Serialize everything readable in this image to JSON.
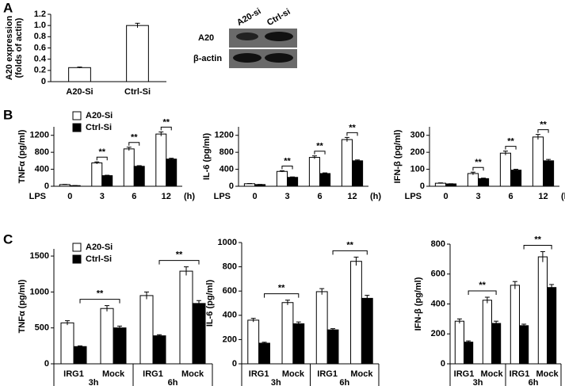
{
  "panel_labels": [
    "A",
    "B",
    "C"
  ],
  "blot": {
    "lanes": [
      "A20-si",
      "Ctrl-si"
    ],
    "rows": [
      "A20",
      "β-actin"
    ]
  },
  "chart_data": [
    {
      "type": "bar",
      "y_label": [
        "A20 expression",
        "(folds of actin)"
      ],
      "categories": [
        "A20-Si",
        "Ctrl-Si"
      ],
      "values": [
        0.25,
        1.0
      ],
      "errors": [
        0.01,
        0.04
      ],
      "color": "#ffffff",
      "ylim": [
        0,
        1.2
      ],
      "yticks": [
        0,
        0.2,
        0.4,
        0.6,
        0.8,
        {
          "value": 1,
          "label": "1.0"
        },
        1.2
      ]
    },
    {
      "type": "bar",
      "y_label": [
        "TNFα (pg/ml)"
      ],
      "x_label_left": "LPS",
      "x_label_right": "(h)",
      "categories": [
        "0",
        "3",
        "6",
        "12"
      ],
      "legend": true,
      "series": [
        {
          "name": "A20-Si",
          "color": "#ffffff",
          "values": [
            40,
            550,
            880,
            1230
          ],
          "errors": [
            5,
            25,
            40,
            50
          ]
        },
        {
          "name": "Ctrl-Si",
          "color": "#000000",
          "values": [
            15,
            250,
            470,
            640
          ],
          "errors": [
            3,
            10,
            15,
            20
          ]
        }
      ],
      "annotations": [
        null,
        "**",
        "**",
        "**"
      ],
      "ylim": [
        0,
        1400
      ],
      "yticks": [
        0,
        400,
        800,
        1200
      ]
    },
    {
      "type": "bar",
      "y_label": [
        "IL-6 (pg/ml)"
      ],
      "x_label_left": "LPS",
      "x_label_right": "(h)",
      "categories": [
        "0",
        "3",
        "6",
        "12"
      ],
      "series": [
        {
          "name": "A20-Si",
          "color": "#ffffff",
          "values": [
            60,
            350,
            680,
            1100
          ],
          "errors": [
            5,
            15,
            35,
            50
          ]
        },
        {
          "name": "Ctrl-Si",
          "color": "#000000",
          "values": [
            40,
            210,
            300,
            600
          ],
          "errors": [
            3,
            10,
            15,
            20
          ]
        }
      ],
      "annotations": [
        null,
        "**",
        "**",
        "**"
      ],
      "ylim": [
        0,
        1400
      ],
      "yticks": [
        0,
        400,
        800,
        1200
      ]
    },
    {
      "type": "bar",
      "y_label": [
        "IFN-β (pg/ml)"
      ],
      "x_label_left": "LPS",
      "x_label_right": "(h)",
      "categories": [
        "0",
        "3",
        "6",
        "12"
      ],
      "series": [
        {
          "name": "A20-Si",
          "color": "#ffffff",
          "values": [
            18,
            75,
            195,
            290
          ],
          "errors": [
            2,
            8,
            12,
            15
          ]
        },
        {
          "name": "Ctrl-Si",
          "color": "#000000",
          "values": [
            14,
            45,
            95,
            150
          ],
          "errors": [
            1,
            3,
            5,
            8
          ]
        }
      ],
      "annotations": [
        null,
        "**",
        "**",
        "**"
      ],
      "ylim": [
        0,
        350
      ],
      "yticks": [
        0,
        100,
        200,
        300
      ]
    },
    {
      "type": "bar",
      "y_label": [
        "TNFα (pg/ml)"
      ],
      "legend": true,
      "categories": [
        "IRG1",
        "Mock",
        "IRG1",
        "Mock"
      ],
      "groups": [
        {
          "label": "3h",
          "annotation": "**"
        },
        {
          "label": "6h",
          "annotation": "**"
        }
      ],
      "series": [
        {
          "name": "A20-Si",
          "color": "#ffffff",
          "values": [
            570,
            770,
            950,
            1290
          ],
          "errors": [
            30,
            40,
            50,
            60
          ]
        },
        {
          "name": "Ctrl-Si",
          "color": "#000000",
          "values": [
            240,
            500,
            390,
            840
          ],
          "errors": [
            10,
            25,
            15,
            40
          ]
        }
      ],
      "ylim": [
        0,
        1600
      ],
      "yticks": [
        0,
        500,
        1000,
        1500
      ]
    },
    {
      "type": "bar",
      "y_label": [
        "IL-6 (pg/ml)"
      ],
      "categories": [
        "IRG1",
        "Mock",
        "IRG1",
        "Mock"
      ],
      "groups": [
        {
          "label": "3h",
          "annotation": "**"
        },
        {
          "label": "6h",
          "annotation": "**"
        }
      ],
      "series": [
        {
          "name": "A20-Si",
          "color": "#ffffff",
          "values": [
            360,
            505,
            595,
            845
          ],
          "errors": [
            15,
            20,
            25,
            35
          ]
        },
        {
          "name": "Ctrl-Si",
          "color": "#000000",
          "values": [
            170,
            330,
            280,
            540
          ],
          "errors": [
            8,
            15,
            10,
            25
          ]
        }
      ],
      "ylim": [
        0,
        1000
      ],
      "yticks": [
        0,
        200,
        400,
        600,
        800,
        1000
      ]
    },
    {
      "type": "bar",
      "y_label": [
        "IFN-β (pg/ml)"
      ],
      "categories": [
        "IRG1",
        "Mock",
        "IRG1",
        "Mock"
      ],
      "groups": [
        {
          "label": "3h",
          "annotation": "**"
        },
        {
          "label": "6h",
          "annotation": "**"
        }
      ],
      "series": [
        {
          "name": "A20-Si",
          "color": "#ffffff",
          "values": [
            285,
            425,
            525,
            715
          ],
          "errors": [
            15,
            20,
            25,
            35
          ]
        },
        {
          "name": "Ctrl-Si",
          "color": "#000000",
          "values": [
            145,
            270,
            255,
            510
          ],
          "errors": [
            8,
            15,
            10,
            20
          ]
        }
      ],
      "ylim": [
        0,
        800
      ],
      "yticks": [
        0,
        200,
        400,
        600,
        800
      ]
    }
  ]
}
